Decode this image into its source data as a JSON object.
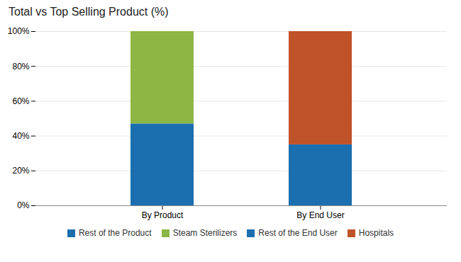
{
  "chart_data": {
    "type": "bar",
    "title": "Total vs Top Selling Product (%)",
    "categories": [
      "By Product",
      "By End User"
    ],
    "stacked": true,
    "series": [
      {
        "name": "Rest of the Product",
        "color": "#1B6FAE",
        "values": [
          47,
          null
        ]
      },
      {
        "name": "Steam Sterilizers",
        "color": "#8DB645",
        "values": [
          53,
          null
        ]
      },
      {
        "name": "Rest of the End User",
        "color": "#1B6FAE",
        "values": [
          null,
          35
        ]
      },
      {
        "name": "Hospitals",
        "color": "#C0522A",
        "values": [
          null,
          65
        ]
      }
    ],
    "ylim": [
      0,
      100
    ],
    "yticks": [
      {
        "value": 0,
        "label": "0%"
      },
      {
        "value": 20,
        "label": "20%"
      },
      {
        "value": 40,
        "label": "40%"
      },
      {
        "value": 60,
        "label": "60%"
      },
      {
        "value": 80,
        "label": "80%"
      },
      {
        "value": 100,
        "label": "100%"
      }
    ],
    "grid": true,
    "legend": "bottom"
  }
}
